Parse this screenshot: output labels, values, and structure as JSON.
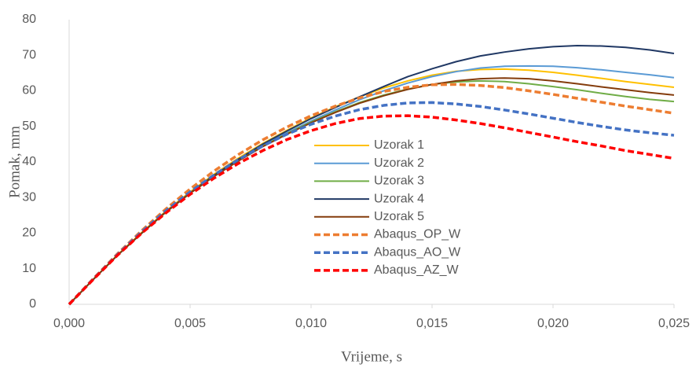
{
  "chart_data": {
    "type": "line",
    "xlabel": "Vrijeme, s",
    "ylabel": "Pomak, mm",
    "x": [
      0,
      0.001,
      0.002,
      0.003,
      0.004,
      0.005,
      0.006,
      0.007,
      0.008,
      0.009,
      0.01,
      0.011,
      0.012,
      0.013,
      0.014,
      0.015,
      0.016,
      0.017,
      0.018,
      0.019,
      0.02,
      0.021,
      0.022,
      0.023,
      0.024,
      0.025
    ],
    "xlim": [
      0,
      0.025
    ],
    "xticks": [
      {
        "value": 0,
        "label": "0,000"
      },
      {
        "value": 0.005,
        "label": "0,005"
      },
      {
        "value": 0.01,
        "label": "0,010"
      },
      {
        "value": 0.015,
        "label": "0,015"
      },
      {
        "value": 0.02,
        "label": "0,020"
      },
      {
        "value": 0.025,
        "label": "0,025"
      }
    ],
    "ylim": [
      0,
      80
    ],
    "yticks": [
      0,
      10,
      20,
      30,
      40,
      50,
      60,
      70,
      80
    ],
    "grid": false,
    "series": [
      {
        "name": "Uzorak 1",
        "color": "#FFC000",
        "dashed": false,
        "values": [
          0,
          7,
          13.9,
          20.2,
          26.2,
          31.6,
          36.6,
          41.1,
          45.2,
          48.9,
          52.4,
          55.5,
          58.3,
          60.8,
          62.8,
          64.4,
          65.5,
          66,
          66.1,
          65.8,
          65.2,
          64.4,
          63.5,
          62.6,
          61.8,
          61
        ]
      },
      {
        "name": "Uzorak 2",
        "color": "#5B9BD5",
        "dashed": false,
        "values": [
          0,
          7,
          13.8,
          20,
          26,
          31.3,
          36.2,
          40.6,
          44.6,
          48.2,
          51.5,
          54.6,
          57.5,
          60,
          62.2,
          64,
          65.4,
          66.4,
          66.9,
          67,
          66.9,
          66.5,
          65.9,
          65.2,
          64.5,
          63.7
        ]
      },
      {
        "name": "Uzorak 3",
        "color": "#70AD47",
        "dashed": false,
        "values": [
          0,
          7,
          13.8,
          20,
          25.9,
          31.2,
          36,
          40.4,
          44.4,
          48,
          51.2,
          54.1,
          56.7,
          58.8,
          60.5,
          61.8,
          62.5,
          62.8,
          62.6,
          62,
          61.2,
          60.3,
          59.3,
          58.4,
          57.6,
          57
        ]
      },
      {
        "name": "Uzorak 4",
        "color": "#203864",
        "dashed": false,
        "values": [
          0,
          7,
          13.8,
          20,
          26,
          31.3,
          36.3,
          40.8,
          45,
          48.7,
          52.2,
          55.3,
          58.3,
          61.2,
          64,
          66.2,
          68.2,
          69.8,
          70.9,
          71.8,
          72.4,
          72.7,
          72.6,
          72.2,
          71.5,
          70.5
        ]
      },
      {
        "name": "Uzorak 5",
        "color": "#843C0C",
        "dashed": false,
        "values": [
          0,
          7,
          13.8,
          20,
          25.9,
          31.2,
          36,
          40.3,
          44.3,
          47.8,
          51,
          53.9,
          56.5,
          58.6,
          60.4,
          61.8,
          62.8,
          63.4,
          63.6,
          63.4,
          62.8,
          62,
          61.1,
          60.3,
          59.5,
          58.8
        ]
      },
      {
        "name": "Abaqus_OP_W",
        "color": "#ED7D31",
        "dashed": true,
        "values": [
          0,
          7.2,
          14.2,
          20.7,
          26.8,
          32.4,
          37.5,
          42.1,
          46.2,
          49.8,
          53,
          55.7,
          58,
          59.8,
          61,
          61.7,
          61.8,
          61.5,
          60.9,
          60,
          59,
          57.9,
          56.8,
          55.7,
          54.7,
          53.7
        ]
      },
      {
        "name": "Abaqus_AO_W",
        "color": "#4472C4",
        "dashed": true,
        "values": [
          0,
          7.1,
          14,
          20.4,
          26.3,
          31.6,
          36.4,
          40.7,
          44.5,
          47.8,
          50.6,
          52.9,
          54.7,
          55.9,
          56.6,
          56.7,
          56.3,
          55.6,
          54.6,
          53.5,
          52.3,
          51.1,
          50,
          49,
          48.2,
          47.5
        ]
      },
      {
        "name": "Abaqus_AZ_W",
        "color": "#FF0000",
        "dashed": true,
        "values": [
          0,
          7,
          13.8,
          20,
          25.7,
          30.9,
          35.5,
          39.6,
          43.2,
          46.3,
          48.8,
          50.8,
          52.2,
          52.9,
          53,
          52.6,
          51.8,
          50.8,
          49.6,
          48.3,
          47,
          45.7,
          44.5,
          43.2,
          42.1,
          41
        ]
      }
    ]
  }
}
